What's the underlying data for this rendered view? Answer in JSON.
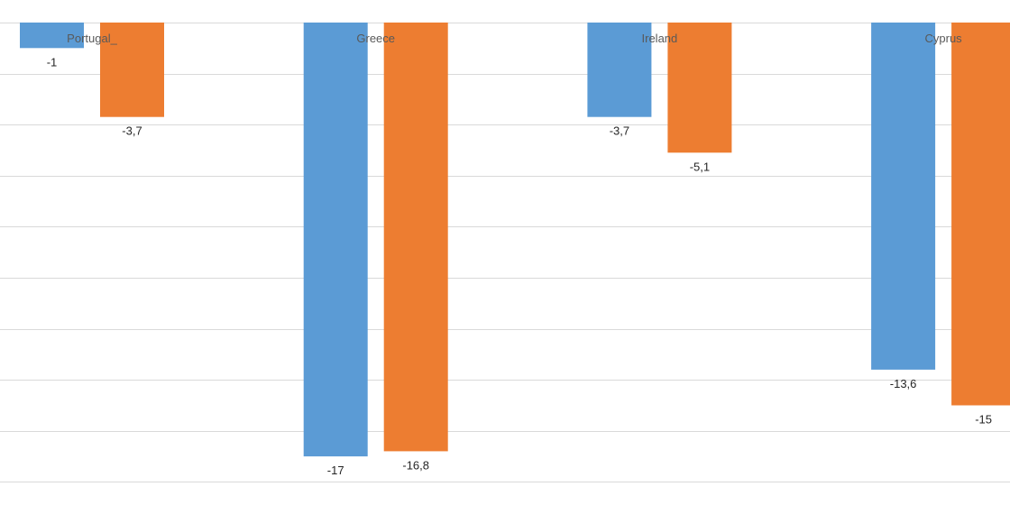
{
  "chart_data": {
    "type": "bar",
    "orientation": "vertical",
    "categories": [
      "Portugal_",
      "Greece",
      "Ireland",
      "Cyprus"
    ],
    "series": [
      {
        "values": [
          -1,
          -17,
          -3.7,
          -13.6
        ],
        "data_labels": [
          "-1",
          "-17",
          "-3,7",
          "-13,6"
        ],
        "color": "#5b9bd5"
      },
      {
        "values": [
          -3.7,
          -16.8,
          -5.1,
          -15
        ],
        "data_labels": [
          "-3,7",
          "-16,8",
          "-5,1",
          "-15"
        ],
        "color": "#ed7d31"
      }
    ],
    "ylim": [
      -18,
      0
    ],
    "grid_step": 2,
    "grid": true,
    "legend": "none",
    "category_labels_position": "top",
    "title": "",
    "xlabel": "",
    "ylabel": ""
  }
}
